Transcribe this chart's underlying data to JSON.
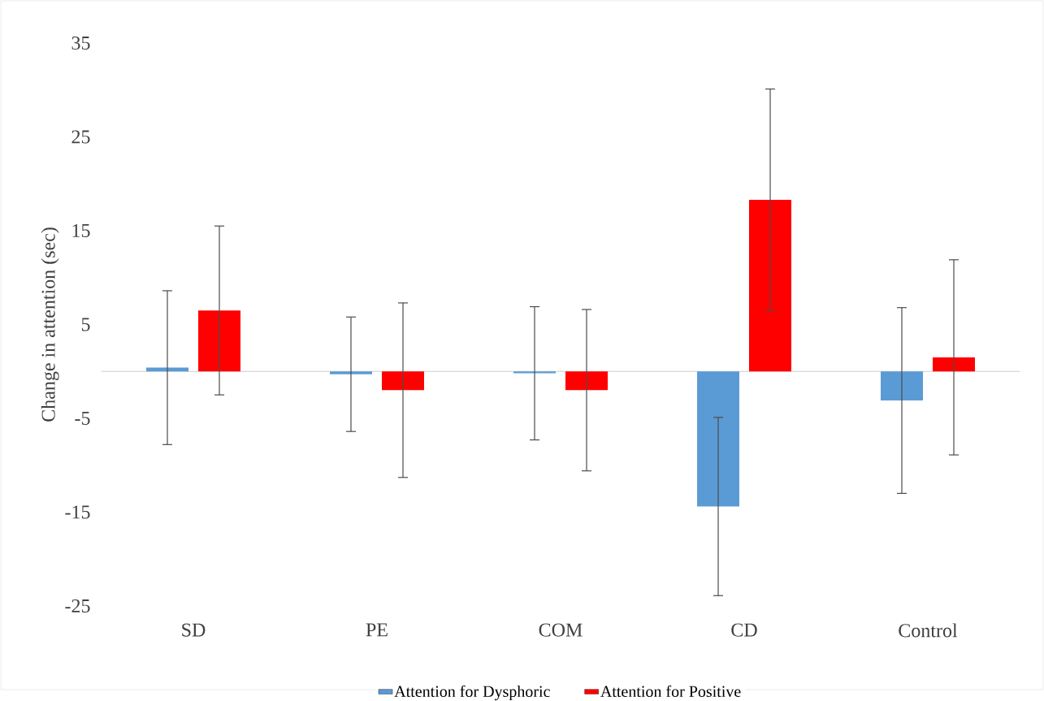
{
  "chart_data": {
    "type": "bar",
    "ylabel": "Change in attention (sec)",
    "categories": [
      "SD",
      "PE",
      "COM",
      "CD",
      "Control"
    ],
    "series": [
      {
        "name": "Attention for Dysphoric",
        "color": "#5b9bd5",
        "values": [
          0.4,
          -0.3,
          -0.2,
          -14.4,
          -3.1
        ],
        "errors": [
          8.2,
          6.1,
          7.1,
          9.5,
          9.9
        ]
      },
      {
        "name": "Attention for Positive",
        "color": "#ff0000",
        "values": [
          6.5,
          -2.0,
          -2.0,
          18.3,
          1.5
        ],
        "errors": [
          9.0,
          9.3,
          8.6,
          11.8,
          10.4
        ]
      }
    ],
    "ylim": [
      -25,
      35
    ],
    "yticks": [
      -25,
      -15,
      -5,
      5,
      15,
      25,
      35
    ],
    "grid": false,
    "legend": "bottom"
  }
}
